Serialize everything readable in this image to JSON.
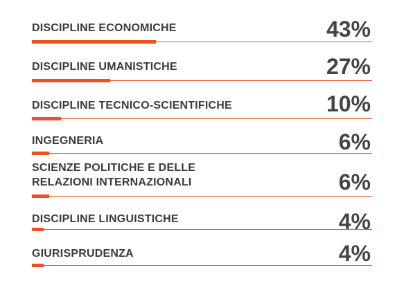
{
  "chart_data": {
    "type": "bar",
    "orientation": "horizontal",
    "categories": [
      "DISCIPLINE ECONOMICHE",
      "DISCIPLINE UMANISTICHE",
      "DISCIPLINE TECNICO-SCIENTIFICHE",
      "INGEGNERIA",
      "SCIENZE POLITICHE E DELLE\nRELAZIONI INTERNAZIONALI",
      "DISCIPLINE LINGUISTICHE",
      "GIURISPRUDENZA"
    ],
    "values": [
      43,
      27,
      10,
      6,
      6,
      4,
      4
    ],
    "value_labels": [
      "43%",
      "27%",
      "10%",
      "6%",
      "6%",
      "4%",
      "4%"
    ],
    "xlim": [
      0,
      100
    ],
    "unit": "%"
  },
  "colors": {
    "bar": "#f04e23",
    "label": "#3a3a3a",
    "value": "#444444"
  }
}
